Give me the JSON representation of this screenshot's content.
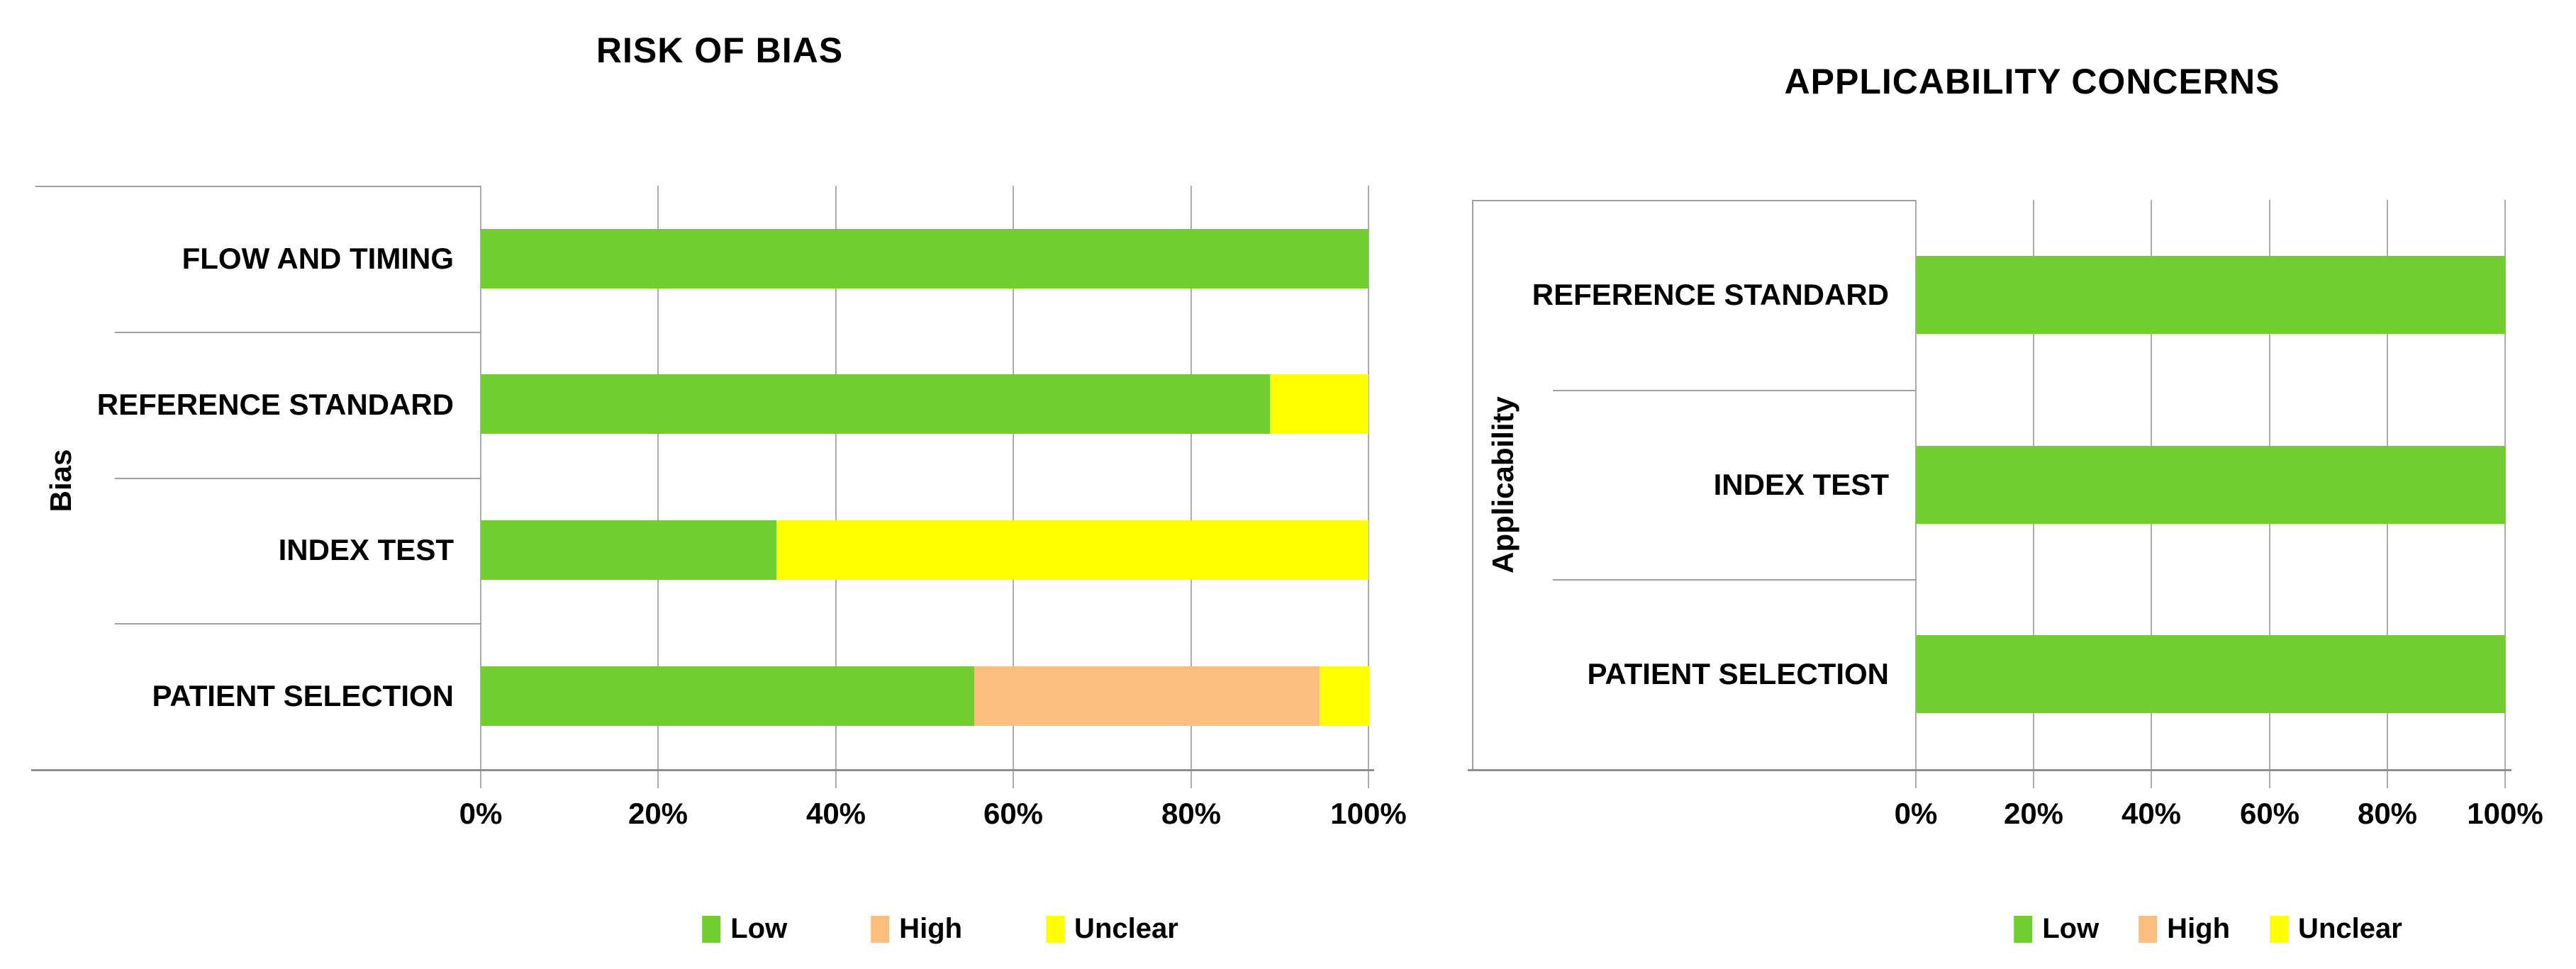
{
  "figure": {
    "background": "#ffffff"
  },
  "colors": {
    "low": "#71CE2F",
    "high": "#FBBE7D",
    "unclear": "#FFFF00",
    "gridline": "#ADADAD",
    "axis": "#8F8F8F",
    "border": "#A0A0A0",
    "text": "#000000"
  },
  "chart_data": [
    {
      "type": "bar",
      "orientation": "horizontal",
      "stacked": true,
      "title": "RISK OF BIAS",
      "ylabel": "Bias",
      "xlabel": "",
      "categories": [
        "FLOW AND TIMING",
        "REFERENCE STANDARD",
        "INDEX TEST",
        "PATIENT SELECTION"
      ],
      "series": [
        {
          "name": "Low",
          "color_key": "low",
          "values": [
            100,
            88.9,
            33.3,
            55.6
          ]
        },
        {
          "name": "High",
          "color_key": "high",
          "values": [
            0,
            0,
            0,
            38.9
          ]
        },
        {
          "name": "Unclear",
          "color_key": "unclear",
          "values": [
            0,
            11.1,
            66.7,
            5.6
          ]
        }
      ],
      "xlim": [
        0,
        100
      ],
      "x_tick_labels": [
        "0%",
        "20%",
        "40%",
        "60%",
        "80%",
        "100%"
      ],
      "grid": true,
      "legend": [
        "Low",
        "High",
        "Unclear"
      ],
      "legend_position": "bottom"
    },
    {
      "type": "bar",
      "orientation": "horizontal",
      "stacked": true,
      "title": "APPLICABILITY CONCERNS",
      "ylabel": "Applicability",
      "xlabel": "",
      "categories": [
        "REFERENCE STANDARD",
        "INDEX TEST",
        "PATIENT SELECTION"
      ],
      "series": [
        {
          "name": "Low",
          "color_key": "low",
          "values": [
            100,
            100,
            100
          ]
        },
        {
          "name": "High",
          "color_key": "high",
          "values": [
            0,
            0,
            0
          ]
        },
        {
          "name": "Unclear",
          "color_key": "unclear",
          "values": [
            0,
            0,
            0
          ]
        }
      ],
      "xlim": [
        0,
        100
      ],
      "x_tick_labels": [
        "0%",
        "20%",
        "40%",
        "60%",
        "80%",
        "100%"
      ],
      "grid": true,
      "legend": [
        "Low",
        "High",
        "Unclear"
      ],
      "legend_position": "bottom"
    }
  ]
}
